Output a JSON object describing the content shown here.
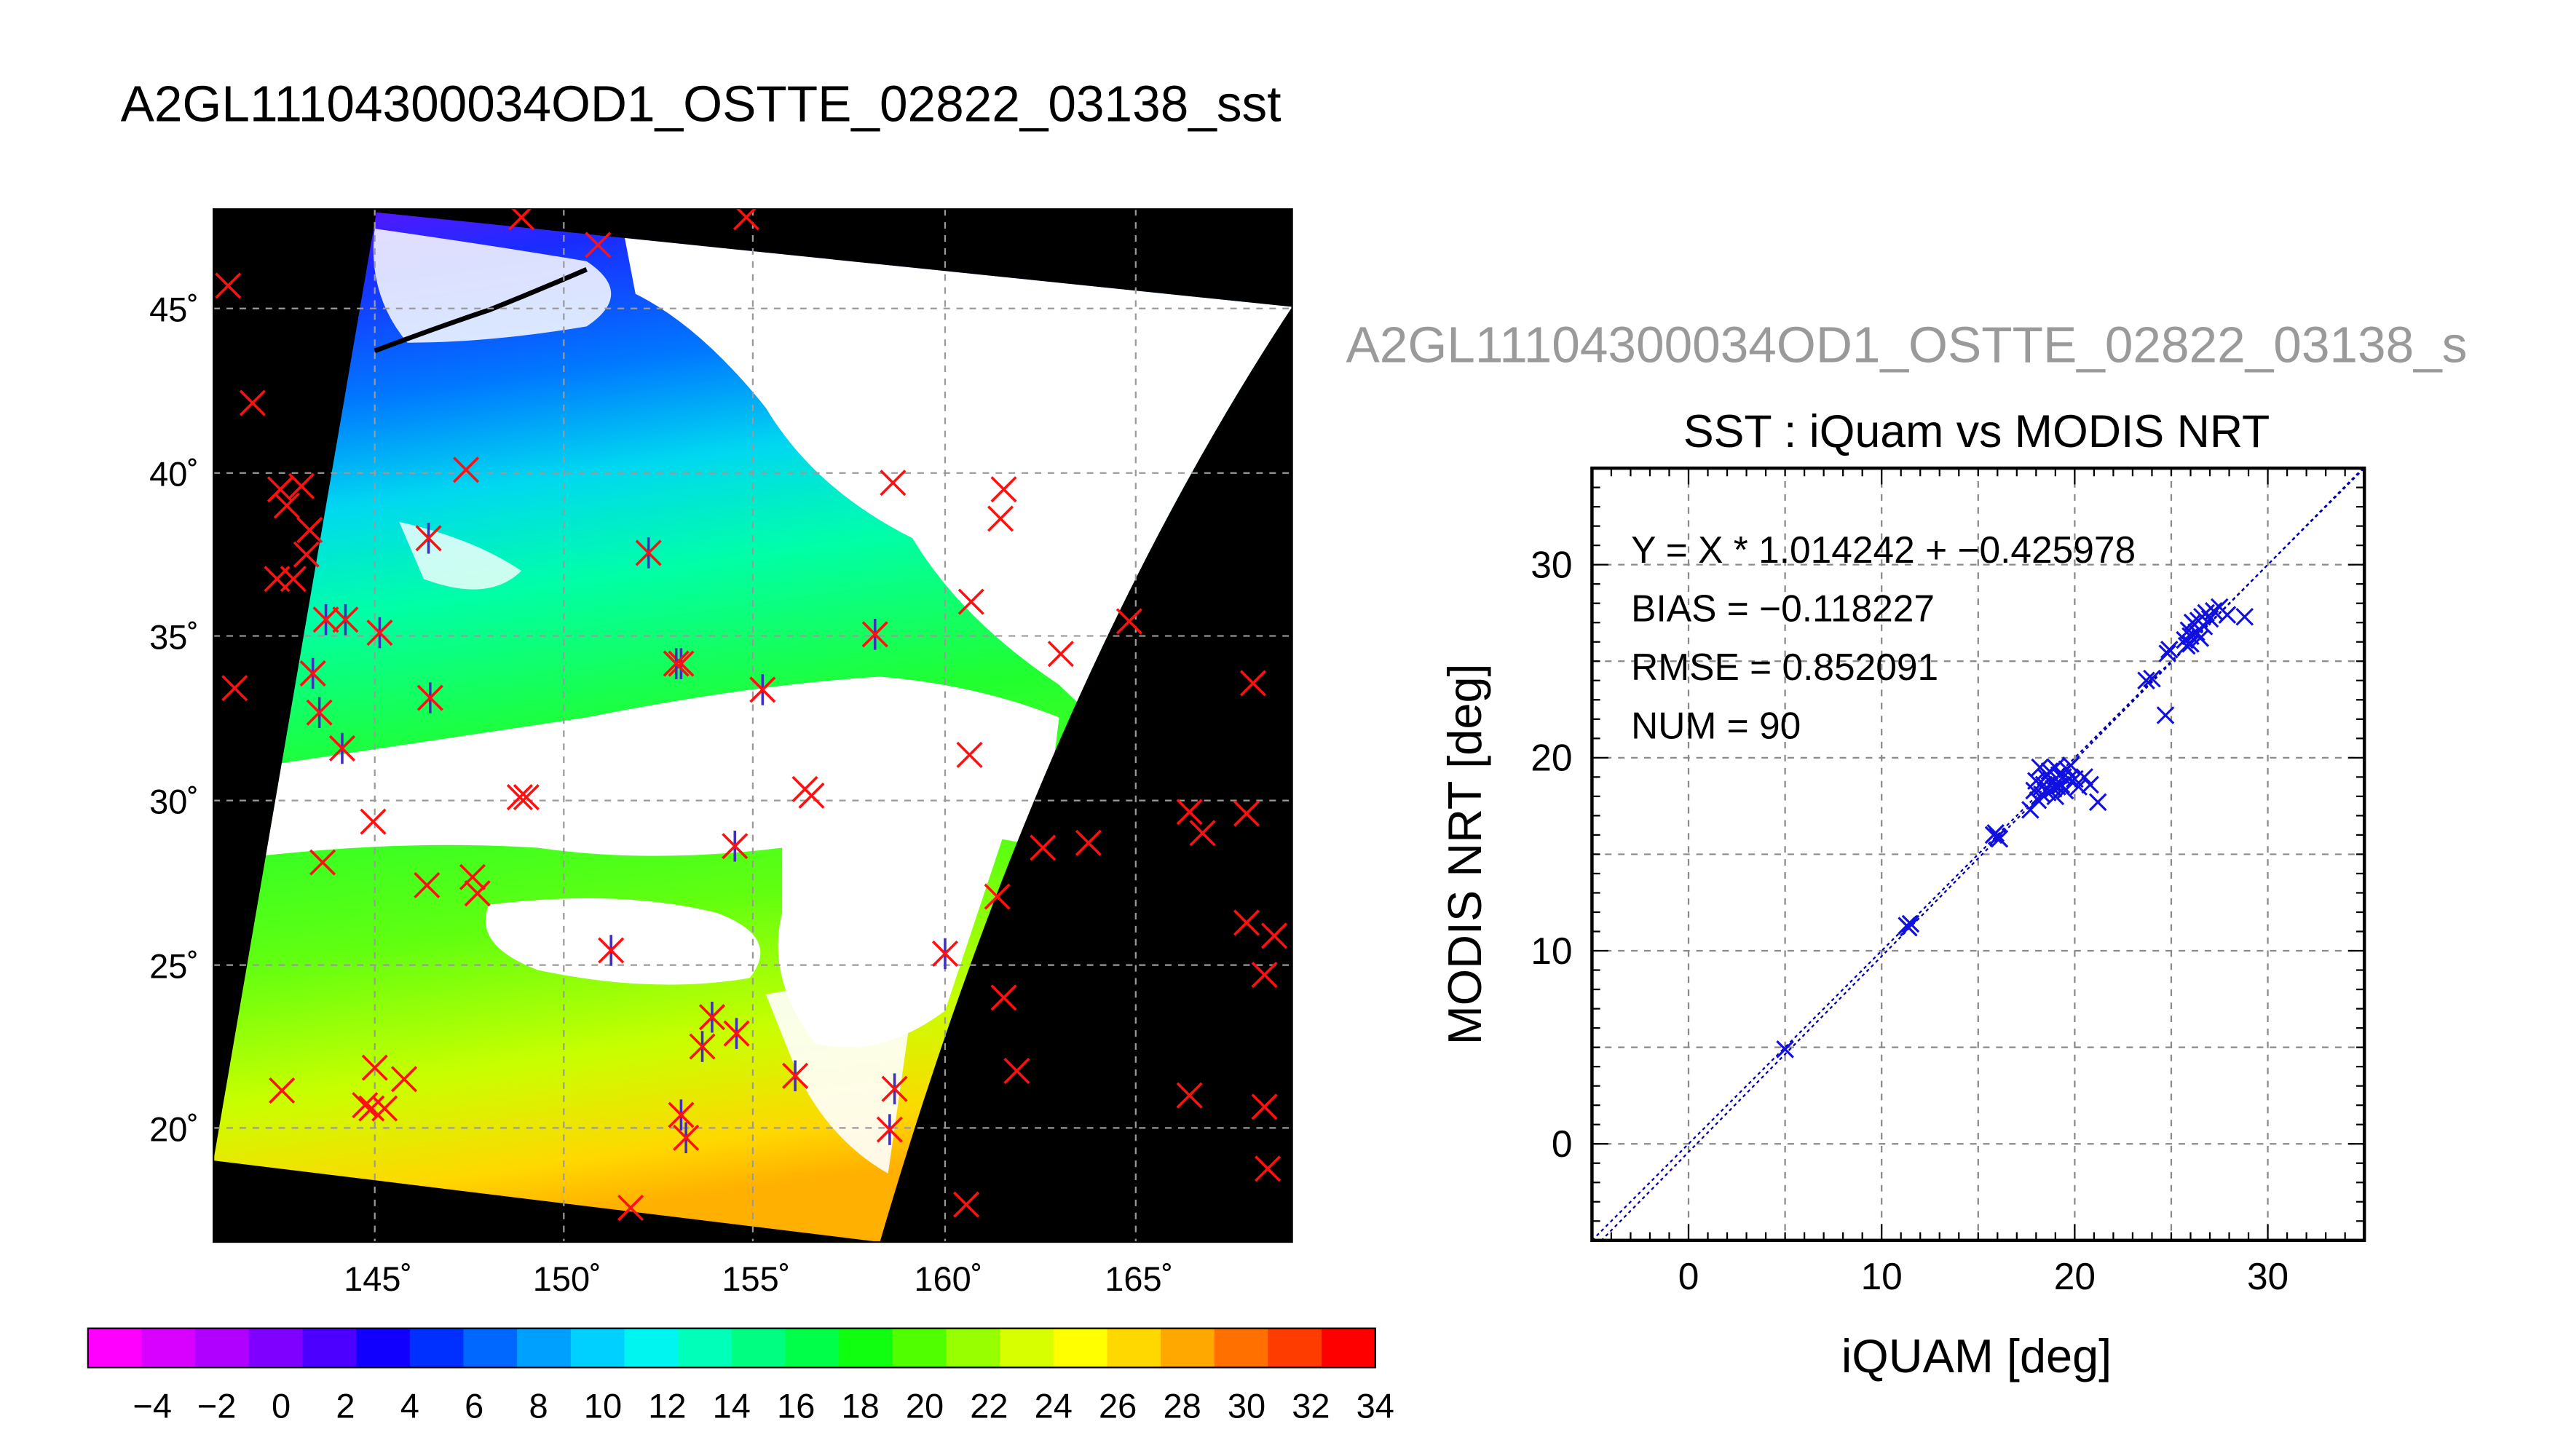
{
  "page": {
    "title": "A2GL11104300034OD1_OSTTE_02822_03138_sst",
    "subtitle_truncated": "A2GL11104300034OD1_OSTTE_02822_03138_s"
  },
  "map": {
    "lat_labels": [
      "45˚",
      "40˚",
      "35˚",
      "30˚",
      "25˚",
      "20˚"
    ],
    "lon_labels": [
      "145˚",
      "150˚",
      "155˚",
      "160˚",
      "165˚"
    ]
  },
  "colorbar": {
    "tick_labels": [
      "−4",
      "−2",
      "0",
      "2",
      "4",
      "6",
      "8",
      "10",
      "12",
      "14",
      "16",
      "18",
      "20",
      "22",
      "24",
      "26",
      "28",
      "30",
      "32",
      "34"
    ],
    "colors": [
      "#ff00ff",
      "#d800ff",
      "#b000ff",
      "#8000ff",
      "#4c00ff",
      "#1200ff",
      "#0030ff",
      "#0068ff",
      "#00a0ff",
      "#00d0ff",
      "#00f5f0",
      "#00ffb8",
      "#00ff80",
      "#00ff48",
      "#10ff10",
      "#50ff00",
      "#98ff00",
      "#d8ff00",
      "#ffff00",
      "#ffd800",
      "#ffa800",
      "#ff7000",
      "#ff3c00",
      "#ff0000"
    ]
  },
  "chart_data": {
    "type": "scatter",
    "title": "SST : iQuam vs MODIS NRT",
    "xlabel": "iQUAM [deg]",
    "ylabel": "MODIS NRT [deg]",
    "xlim": [
      -5,
      35
    ],
    "ylim": [
      -5,
      35
    ],
    "xticks": [
      0,
      10,
      20,
      30
    ],
    "yticks": [
      0,
      10,
      20,
      30
    ],
    "grid": true,
    "stats": {
      "fit": "Y = X * 1.014242 + −0.425978",
      "bias": "BIAS = −0.118227",
      "rmse": "RMSE = 0.852091",
      "num": "NUM = 90"
    },
    "fit_line": {
      "slope": 1.014242,
      "intercept": -0.425978
    },
    "points": [
      [
        5.0,
        4.9
      ],
      [
        11.3,
        11.3
      ],
      [
        11.5,
        11.4
      ],
      [
        11.4,
        11.2
      ],
      [
        15.8,
        16.0
      ],
      [
        16.0,
        15.9
      ],
      [
        15.9,
        16.1
      ],
      [
        16.1,
        15.8
      ],
      [
        17.7,
        17.3
      ],
      [
        17.9,
        18.3
      ],
      [
        18.0,
        18.8
      ],
      [
        18.2,
        19.5
      ],
      [
        18.3,
        18.1
      ],
      [
        18.4,
        18.6
      ],
      [
        18.5,
        19.0
      ],
      [
        18.6,
        18.2
      ],
      [
        18.7,
        19.3
      ],
      [
        18.8,
        18.7
      ],
      [
        18.9,
        18.4
      ],
      [
        19.0,
        19.5
      ],
      [
        19.1,
        18.5
      ],
      [
        19.2,
        19.1
      ],
      [
        19.3,
        18.6
      ],
      [
        19.4,
        19.0
      ],
      [
        19.5,
        18.3
      ],
      [
        19.6,
        19.4
      ],
      [
        19.7,
        18.9
      ],
      [
        19.8,
        19.6
      ],
      [
        20.0,
        18.9
      ],
      [
        20.2,
        18.5
      ],
      [
        20.5,
        19.0
      ],
      [
        20.8,
        18.6
      ],
      [
        21.2,
        17.7
      ],
      [
        18.1,
        17.8
      ],
      [
        18.3,
        18.5
      ],
      [
        18.6,
        19.1
      ],
      [
        19.0,
        18.0
      ],
      [
        23.7,
        24.0
      ],
      [
        24.0,
        24.1
      ],
      [
        24.8,
        25.4
      ],
      [
        24.9,
        25.6
      ],
      [
        24.7,
        22.2
      ],
      [
        25.7,
        26.1
      ],
      [
        25.9,
        26.6
      ],
      [
        26.0,
        26.3
      ],
      [
        26.1,
        27.0
      ],
      [
        26.2,
        26.9
      ],
      [
        26.3,
        26.5
      ],
      [
        26.4,
        27.1
      ],
      [
        26.5,
        26.2
      ],
      [
        26.6,
        27.3
      ],
      [
        26.7,
        26.8
      ],
      [
        26.8,
        27.5
      ],
      [
        27.0,
        27.2
      ],
      [
        27.2,
        27.6
      ],
      [
        27.5,
        27.8
      ],
      [
        27.9,
        27.4
      ],
      [
        28.8,
        27.3
      ],
      [
        25.8,
        25.8
      ],
      [
        26.0,
        25.9
      ]
    ]
  }
}
